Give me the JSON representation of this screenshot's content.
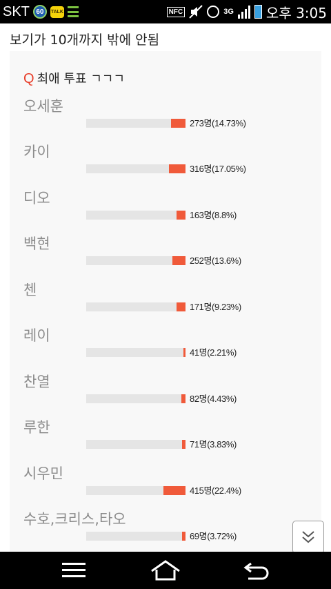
{
  "status_bar": {
    "carrier": "SKT",
    "badge_number": "60",
    "talk_icon_text": "TALK",
    "nfc": "NFC",
    "network": "3G",
    "time": "오후 3:05",
    "battery_color": "#39a0e0"
  },
  "page": {
    "title": "보기가 10개까지 밖에 안됨"
  },
  "poll": {
    "q_mark": "Q",
    "question": "최애 투표 ㄱㄱㄱ",
    "bar_color": "#f05a3a",
    "track_color": "#e5e5e5",
    "options": [
      {
        "label": "오세훈",
        "stat": "273명(14.73%)",
        "percent": 14.73
      },
      {
        "label": "카이",
        "stat": "316명(17.05%)",
        "percent": 17.05
      },
      {
        "label": "디오",
        "stat": "163명(8.8%)",
        "percent": 8.8
      },
      {
        "label": "백현",
        "stat": "252명(13.6%)",
        "percent": 13.6
      },
      {
        "label": "첸",
        "stat": "171명(9.23%)",
        "percent": 9.23
      },
      {
        "label": "레이",
        "stat": "41명(2.21%)",
        "percent": 2.21
      },
      {
        "label": "찬열",
        "stat": "82명(4.43%)",
        "percent": 4.43
      },
      {
        "label": "루한",
        "stat": "71명(3.83%)",
        "percent": 3.83
      },
      {
        "label": "시우민",
        "stat": "415명(22.4%)",
        "percent": 22.4
      },
      {
        "label": "수호,크리스,타오",
        "stat": "69명(3.72%)",
        "percent": 3.72
      }
    ]
  },
  "icons": {
    "scroll_down": "double-chevron-down-icon",
    "menu": "menu-icon",
    "home": "home-icon",
    "back": "back-icon"
  }
}
